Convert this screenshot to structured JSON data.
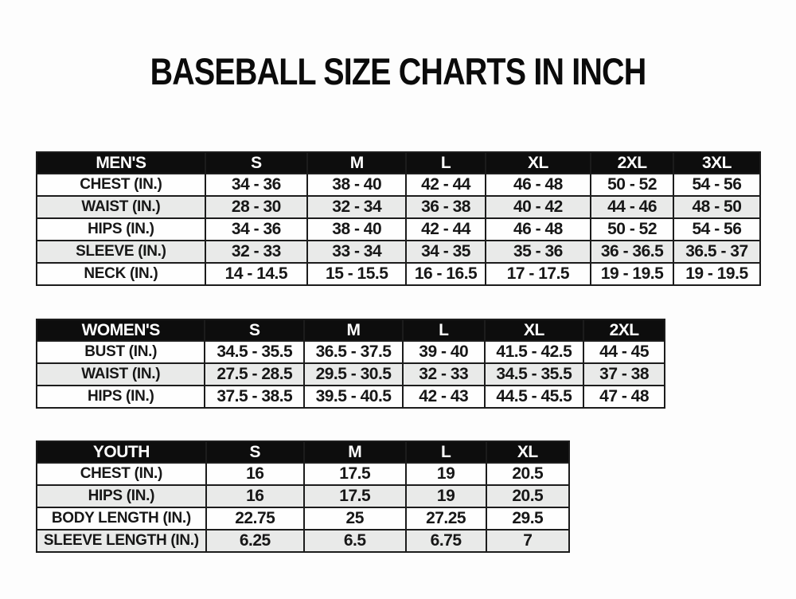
{
  "title": "BASEBALL SIZE CHARTS IN INCH",
  "colors": {
    "page_bg": "#fdfdfd",
    "header_bg": "#0d0d0d",
    "header_text": "#ffffff",
    "row_bg_white": "#fefefe",
    "row_bg_gray": "#e9eae9",
    "border": "#1c1c1c",
    "text": "#171717"
  },
  "tables": [
    {
      "name": "mens",
      "header": [
        "MEN'S",
        "S",
        "M",
        "L",
        "XL",
        "2XL",
        "3XL"
      ],
      "col_widths_pct": [
        23.3,
        14.1,
        13.7,
        10.9,
        14.6,
        11.4,
        12.0
      ],
      "rows": [
        {
          "label": "CHEST (IN.)",
          "values": [
            "34 - 36",
            "38 - 40",
            "42 - 44",
            "46 - 48",
            "50 - 52",
            "54 - 56"
          ]
        },
        {
          "label": "WAIST (IN.)",
          "values": [
            "28 - 30",
            "32 - 34",
            "36 - 38",
            "40 - 42",
            "44 - 46",
            "48 - 50"
          ]
        },
        {
          "label": "HIPS (IN.)",
          "values": [
            "34 - 36",
            "38 - 40",
            "42 - 44",
            "46 - 48",
            "50 - 52",
            "54 - 56"
          ]
        },
        {
          "label": "SLEEVE (IN.)",
          "values": [
            "32 - 33",
            "33 - 34",
            "34 - 35",
            "35 - 36",
            "36 - 36.5",
            "36.5 - 37"
          ]
        },
        {
          "label": "NECK (IN.)",
          "values": [
            "14 - 14.5",
            "15 - 15.5",
            "16 - 16.5",
            "17 - 17.5",
            "19 - 19.5",
            "19 - 19.5"
          ]
        }
      ]
    },
    {
      "name": "womens",
      "header": [
        "WOMEN'S",
        "S",
        "M",
        "L",
        "XL",
        "2XL"
      ],
      "col_widths_pct": [
        26.8,
        15.8,
        15.7,
        13.0,
        15.8,
        12.9
      ],
      "rows": [
        {
          "label": "BUST (IN.)",
          "values": [
            "34.5 - 35.5",
            "36.5 - 37.5",
            "39 - 40",
            "41.5 - 42.5",
            "44 - 45"
          ]
        },
        {
          "label": "WAIST (IN.)",
          "values": [
            "27.5 - 28.5",
            "29.5 - 30.5",
            "32 - 33",
            "34.5 - 35.5",
            "37 - 38"
          ]
        },
        {
          "label": "HIPS (IN.)",
          "values": [
            "37.5 - 38.5",
            "39.5 - 40.5",
            "42 - 43",
            "44.5 - 45.5",
            "47 - 48"
          ]
        }
      ]
    },
    {
      "name": "youth",
      "header": [
        "YOUTH",
        "S",
        "M",
        "L",
        "XL"
      ],
      "col_widths_pct": [
        31.8,
        18.4,
        19.1,
        15.1,
        15.6
      ],
      "rows": [
        {
          "label": "CHEST (IN.)",
          "values": [
            "16",
            "17.5",
            "19",
            "20.5"
          ]
        },
        {
          "label": "HIPS (IN.)",
          "values": [
            "16",
            "17.5",
            "19",
            "20.5"
          ]
        },
        {
          "label": "BODY LENGTH (IN.)",
          "values": [
            "22.75",
            "25",
            "27.25",
            "29.5"
          ]
        },
        {
          "label": "SLEEVE LENGTH (IN.)",
          "values": [
            "6.25",
            "6.5",
            "6.75",
            "7"
          ]
        }
      ]
    }
  ]
}
